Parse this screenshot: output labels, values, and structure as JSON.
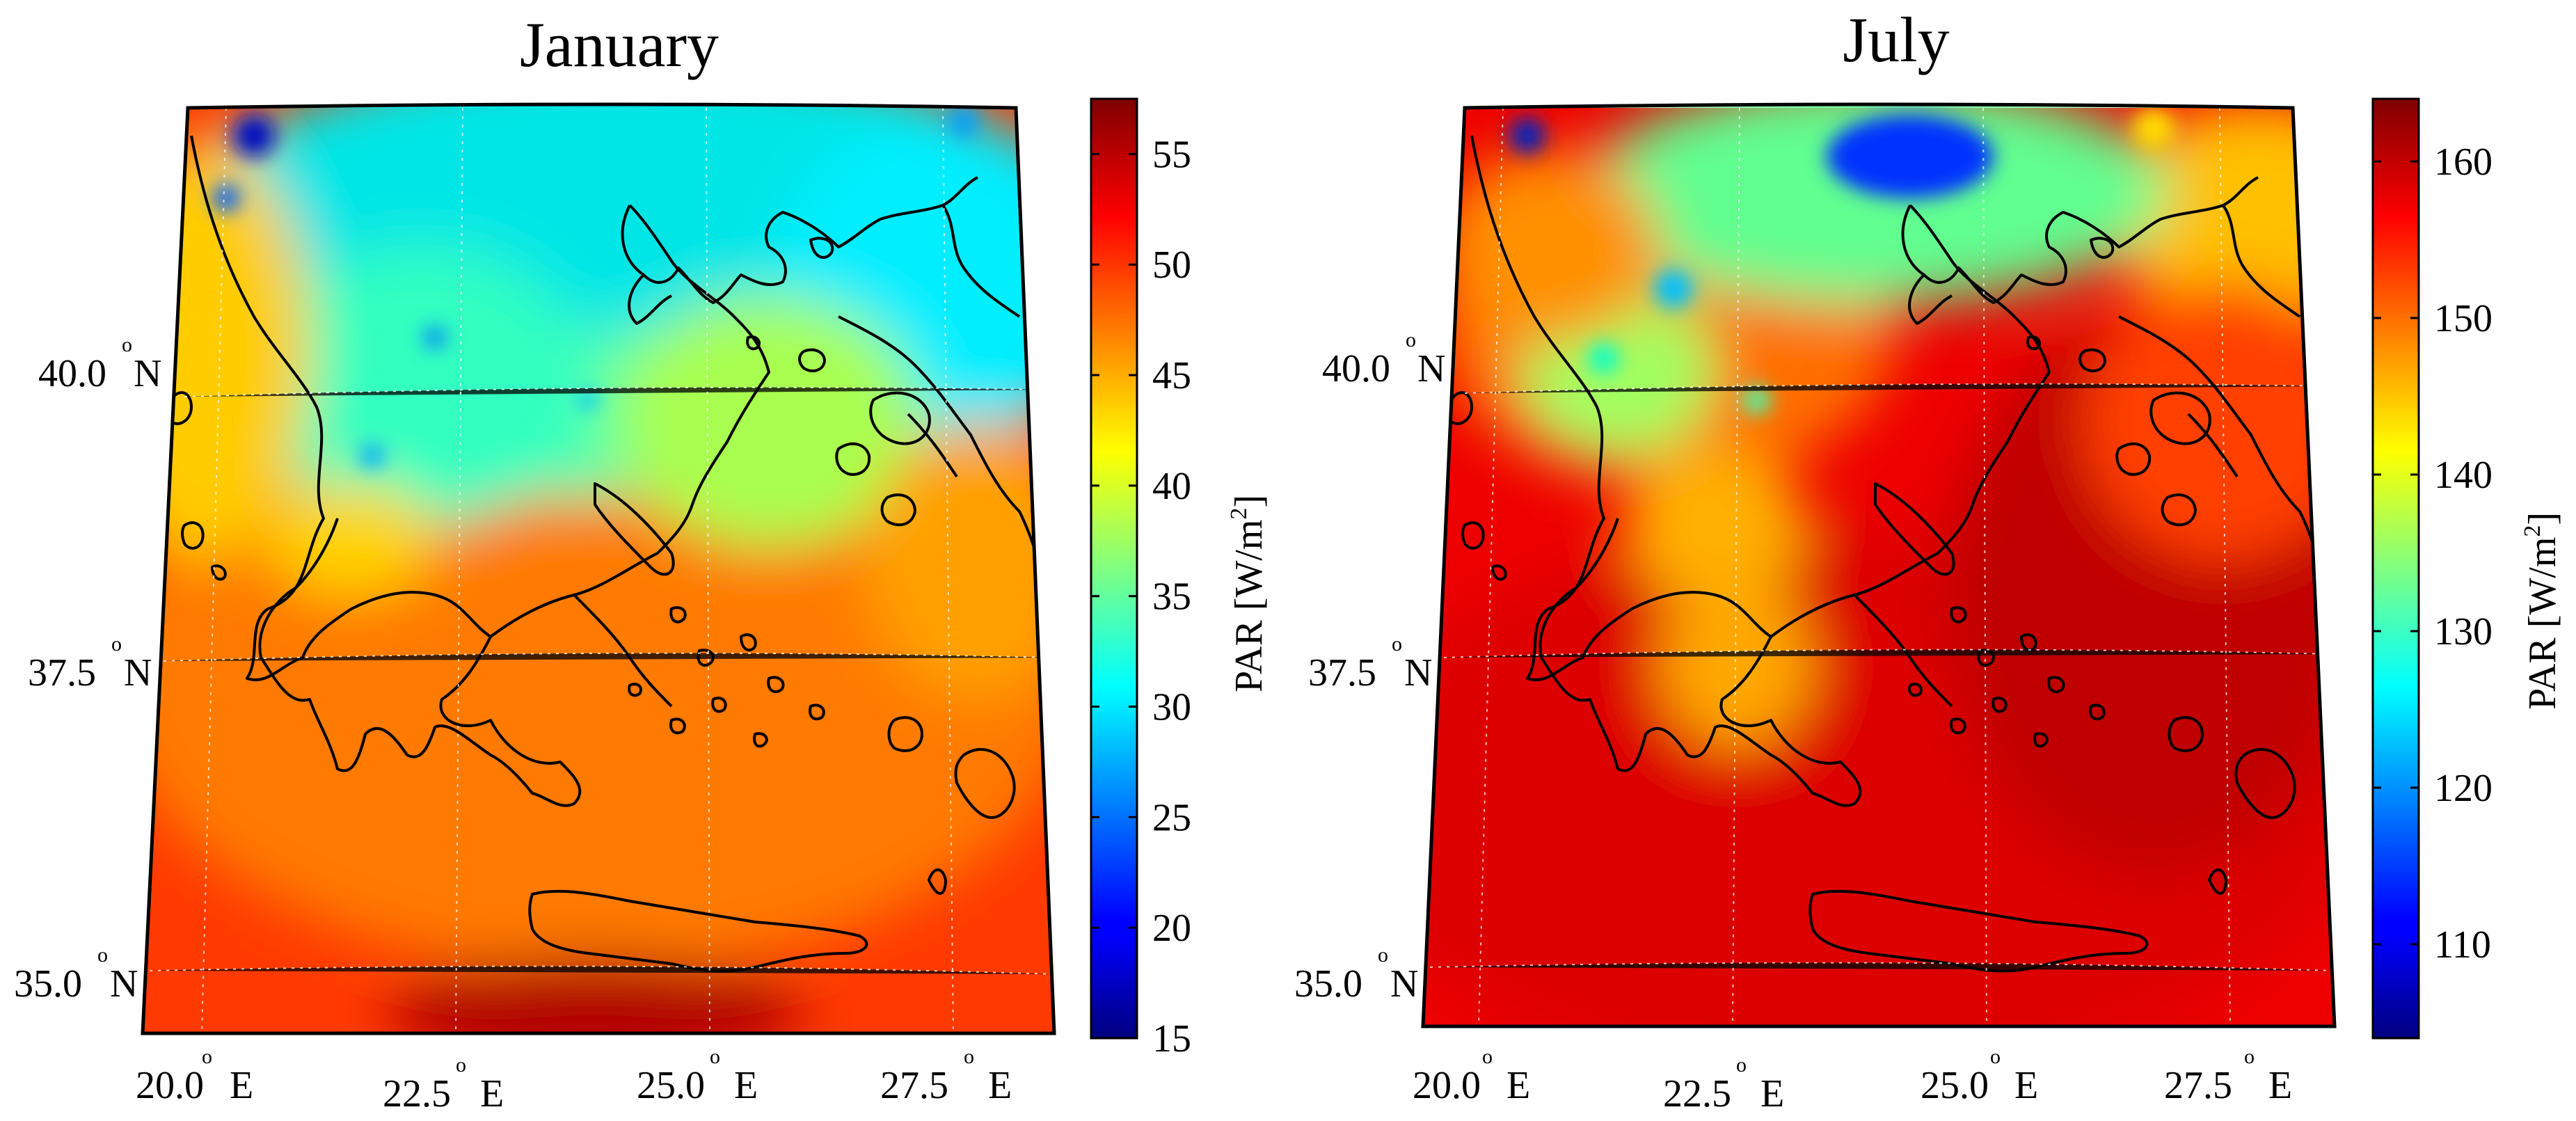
{
  "panels": [
    {
      "title": "January",
      "colorbar": {
        "label_prefix": "PAR [W/m",
        "label_sup": "2",
        "label_suffix": "]",
        "range": [
          15,
          57.5
        ],
        "ticks": [
          "15",
          "20",
          "25",
          "30",
          "35",
          "40",
          "45",
          "50",
          "55"
        ]
      },
      "pattern": "winter"
    },
    {
      "title": "July",
      "colorbar": {
        "label_prefix": "PAR [W/m",
        "label_sup": "2",
        "label_suffix": "]",
        "range": [
          104,
          164
        ],
        "ticks": [
          "110",
          "120",
          "130",
          "140",
          "150",
          "160"
        ]
      },
      "pattern": "summer"
    }
  ],
  "axes": {
    "lat_labels": [
      {
        "value": "40.0",
        "hemisphere": "N"
      },
      {
        "value": "37.5",
        "hemisphere": "N"
      },
      {
        "value": "35.0",
        "hemisphere": "N"
      }
    ],
    "lon_labels": [
      {
        "value": "20.0",
        "hemisphere": "E"
      },
      {
        "value": "22.5",
        "hemisphere": "E"
      },
      {
        "value": "25.0",
        "hemisphere": "E"
      },
      {
        "value": "27.5",
        "hemisphere": "E"
      }
    ],
    "degree_symbol": "o"
  },
  "colormap": "jet"
}
